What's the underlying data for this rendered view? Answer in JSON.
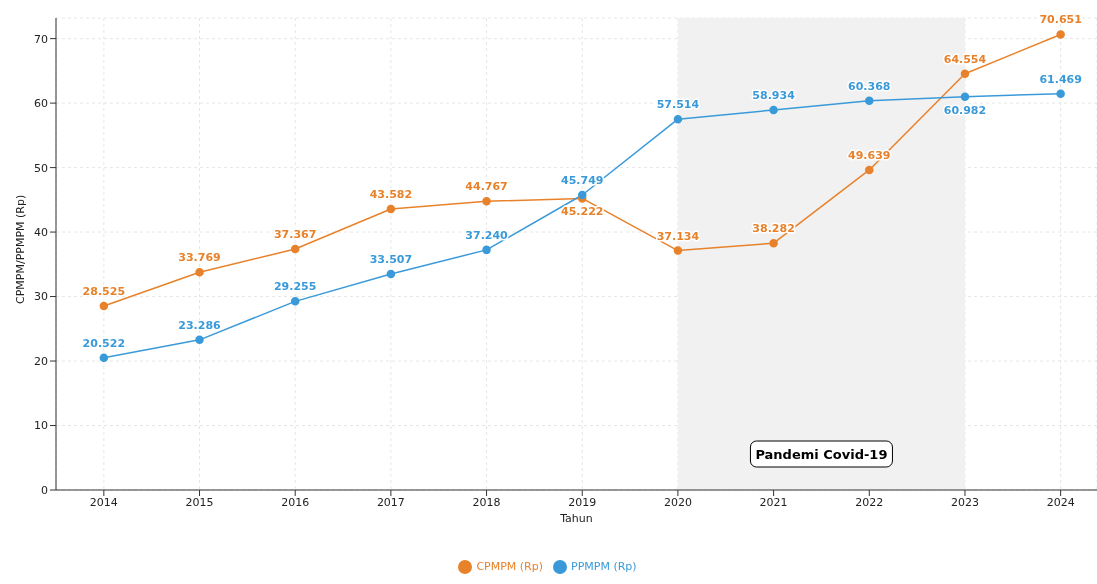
{
  "chart_data": {
    "type": "line",
    "xlabel": "Tahun",
    "ylabel": "CPMPM/PPMPM (Rp)",
    "x": [
      2014,
      2015,
      2016,
      2017,
      2018,
      2019,
      2020,
      2021,
      2022,
      2023,
      2024
    ],
    "series": [
      {
        "name": "CPMPM (Rp)",
        "color": "#e8822a",
        "values": [
          28.525,
          33.769,
          37.367,
          43.582,
          44.767,
          45.222,
          37.134,
          38.282,
          49.639,
          64.554,
          70.651
        ],
        "value_labels": [
          "28.525",
          "33.769",
          "37.367",
          "43.582",
          "44.767",
          "45.222",
          "37.134",
          "38.282",
          "49.639",
          "64.554",
          "70.651"
        ]
      },
      {
        "name": "PPMPM (Rp)",
        "color": "#3a9ad9",
        "values": [
          20.522,
          23.286,
          29.255,
          33.507,
          37.24,
          45.749,
          57.514,
          58.934,
          60.368,
          60.982,
          61.469
        ],
        "value_labels": [
          "20.522",
          "23.286",
          "29.255",
          "33.507",
          "37.240",
          "45.749",
          "57.514",
          "58.934",
          "60.368",
          "60.982",
          "61.469"
        ]
      }
    ],
    "xlim": [
      2013.5,
      2024.38
    ],
    "xticks": [
      2014,
      2015,
      2016,
      2017,
      2018,
      2019,
      2020,
      2021,
      2022,
      2023,
      2024
    ],
    "ylim": [
      0,
      73.2
    ],
    "yticks": [
      0,
      10,
      20,
      30,
      40,
      50,
      60,
      70
    ],
    "grid": true,
    "legend": "bottom",
    "marker": "circle",
    "line_style": "solid",
    "bands": [
      {
        "axis": "x",
        "from": 2020,
        "to": 2023,
        "label": "Pandemi Covid-19",
        "color": "#f1f1f1"
      }
    ]
  }
}
